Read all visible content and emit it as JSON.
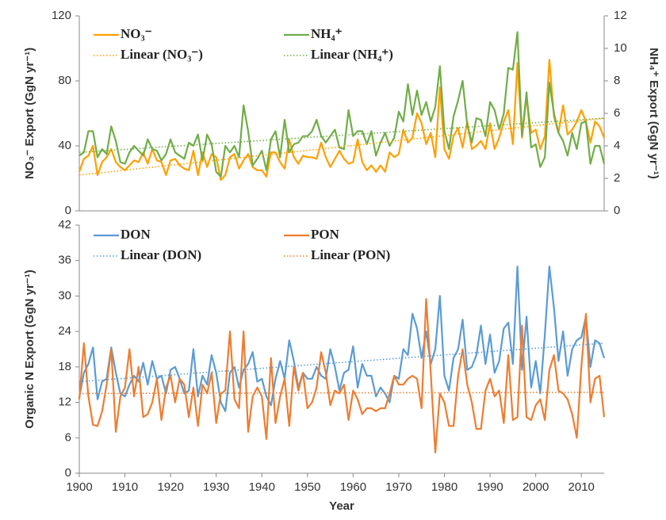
{
  "chart_data": [
    {
      "type": "line",
      "ylabel": "NO₃⁻ Export (GgN yr⁻¹)",
      "y2label": "NH₄⁺ Export (GgN yr⁻¹)",
      "x": [
        1900,
        1901,
        1902,
        1903,
        1904,
        1905,
        1906,
        1907,
        1908,
        1909,
        1910,
        1911,
        1912,
        1913,
        1914,
        1915,
        1916,
        1917,
        1918,
        1919,
        1920,
        1921,
        1922,
        1923,
        1924,
        1925,
        1926,
        1927,
        1928,
        1929,
        1930,
        1931,
        1932,
        1933,
        1934,
        1935,
        1936,
        1937,
        1938,
        1939,
        1940,
        1941,
        1942,
        1943,
        1944,
        1945,
        1946,
        1947,
        1948,
        1949,
        1950,
        1951,
        1952,
        1953,
        1954,
        1955,
        1956,
        1957,
        1958,
        1959,
        1960,
        1961,
        1962,
        1963,
        1964,
        1965,
        1966,
        1967,
        1968,
        1969,
        1970,
        1971,
        1972,
        1973,
        1974,
        1975,
        1976,
        1977,
        1978,
        1979,
        1980,
        1981,
        1982,
        1983,
        1984,
        1985,
        1986,
        1987,
        1988,
        1989,
        1990,
        1991,
        1992,
        1993,
        1994,
        1995,
        1996,
        1997,
        1998,
        1999,
        2000,
        2001,
        2002,
        2003,
        2004,
        2005,
        2006,
        2007,
        2008,
        2009,
        2010,
        2011,
        2012,
        2013,
        2014,
        2015
      ],
      "xlim": [
        1900,
        2015
      ],
      "ylim": [
        0,
        120
      ],
      "yticks": [
        0,
        40,
        80,
        120
      ],
      "y2lim": [
        0,
        12
      ],
      "y2ticks": [
        0,
        2,
        4,
        6,
        8,
        10,
        12
      ],
      "series": [
        {
          "name": "NO₃⁻",
          "color": "#ffa000",
          "values": [
            24,
            32,
            34,
            40,
            22,
            30,
            33,
            38,
            30,
            27,
            25,
            28,
            31,
            30,
            36,
            29,
            38,
            31,
            30,
            22,
            31,
            32,
            28,
            26,
            25,
            37,
            22,
            36,
            27,
            35,
            33,
            19,
            22,
            33,
            35,
            26,
            31,
            35,
            27,
            25,
            25,
            21,
            36,
            36,
            30,
            26,
            44,
            33,
            29,
            34,
            33,
            33,
            32,
            42,
            33,
            27,
            32,
            37,
            32,
            29,
            30,
            44,
            30,
            25,
            28,
            24,
            28,
            24,
            36,
            33,
            35,
            50,
            42,
            45,
            60,
            54,
            41,
            48,
            33,
            76,
            38,
            32,
            46,
            51,
            39,
            55,
            38,
            40,
            43,
            38,
            54,
            38,
            45,
            55,
            62,
            41,
            91,
            45,
            70,
            48,
            50,
            38,
            46,
            93,
            58,
            48,
            65,
            47,
            50,
            55,
            62,
            55,
            42,
            55,
            52,
            45
          ]
        },
        {
          "name": "NH₄⁺",
          "color": "#70ad47",
          "axis": "y2",
          "values": [
            3.4,
            3.6,
            4.9,
            4.9,
            3.3,
            3.8,
            3.5,
            5.2,
            4.3,
            3.0,
            2.9,
            3.6,
            4.0,
            3.7,
            3.4,
            4.4,
            3.8,
            3.7,
            3.1,
            3.5,
            4.4,
            3.6,
            3.4,
            3.2,
            4.2,
            4.0,
            4.7,
            3.1,
            4.7,
            4.1,
            2.4,
            2.1,
            4.0,
            3.6,
            4.0,
            3.3,
            6.5,
            4.9,
            2.8,
            3.2,
            3.7,
            2.5,
            4.4,
            4.9,
            3.3,
            5.6,
            3.6,
            4.1,
            4.2,
            4.6,
            4.6,
            4.9,
            5.6,
            4.6,
            4.2,
            4.6,
            5.0,
            3.9,
            3.8,
            6.2,
            4.6,
            4.9,
            4.9,
            4.1,
            4.9,
            3.4,
            4.2,
            4.8,
            4.0,
            4.5,
            6.1,
            5.5,
            7.8,
            5.9,
            7.4,
            5.9,
            6.7,
            5.5,
            6.4,
            8.9,
            4.9,
            3.8,
            5.8,
            6.8,
            8.0,
            5.3,
            4.2,
            5.7,
            5.6,
            4.6,
            6.7,
            6.2,
            5.0,
            6.0,
            8.8,
            8.7,
            11.0,
            4.6,
            7.3,
            3.9,
            4.1,
            2.7,
            3.3,
            7.9,
            6.0,
            4.8,
            4.3,
            3.4,
            4.8,
            3.8,
            5.4,
            5.5,
            2.9,
            4.0,
            4.0,
            2.9
          ]
        },
        {
          "name": "Linear (NO₃⁻)",
          "color": "#ffa000",
          "style": "dotted",
          "x": [
            1900,
            2015
          ],
          "values": [
            22,
            57
          ]
        },
        {
          "name": "Linear (NH₄⁺)",
          "color": "#70ad47",
          "style": "dotted",
          "axis": "y2",
          "x": [
            1900,
            2015
          ],
          "values": [
            3.6,
            5.7
          ]
        }
      ]
    },
    {
      "type": "line",
      "ylabel": "Organic N Export (GgN yr⁻¹)",
      "xlabel": "Year",
      "x": [
        1900,
        1901,
        1902,
        1903,
        1904,
        1905,
        1906,
        1907,
        1908,
        1909,
        1910,
        1911,
        1912,
        1913,
        1914,
        1915,
        1916,
        1917,
        1918,
        1919,
        1920,
        1921,
        1922,
        1923,
        1924,
        1925,
        1926,
        1927,
        1928,
        1929,
        1930,
        1931,
        1932,
        1933,
        1934,
        1935,
        1936,
        1937,
        1938,
        1939,
        1940,
        1941,
        1942,
        1943,
        1944,
        1945,
        1946,
        1947,
        1948,
        1949,
        1950,
        1951,
        1952,
        1953,
        1954,
        1955,
        1956,
        1957,
        1958,
        1959,
        1960,
        1961,
        1962,
        1963,
        1964,
        1965,
        1966,
        1967,
        1968,
        1969,
        1970,
        1971,
        1972,
        1973,
        1974,
        1975,
        1976,
        1977,
        1978,
        1979,
        1980,
        1981,
        1982,
        1983,
        1984,
        1985,
        1986,
        1987,
        1988,
        1989,
        1990,
        1991,
        1992,
        1993,
        1994,
        1995,
        1996,
        1997,
        1998,
        1999,
        2000,
        2001,
        2002,
        2003,
        2004,
        2005,
        2006,
        2007,
        2008,
        2009,
        2010,
        2011,
        2012,
        2013,
        2014,
        2015
      ],
      "xlim": [
        1900,
        2015
      ],
      "xticks": [
        1900,
        1910,
        1920,
        1930,
        1940,
        1950,
        1960,
        1970,
        1980,
        1990,
        2000,
        2010
      ],
      "ylim": [
        0,
        42
      ],
      "yticks": [
        0,
        6,
        12,
        18,
        24,
        30,
        36,
        42
      ],
      "series": [
        {
          "name": "DON",
          "color": "#5b9bd5",
          "values": [
            12.8,
            17,
            18.5,
            21.3,
            12.5,
            15.5,
            16,
            21.3,
            17,
            13.5,
            13,
            15,
            16.5,
            15.5,
            18.7,
            15,
            19,
            16,
            16.5,
            13.5,
            17.5,
            18,
            16,
            13.5,
            14,
            21,
            13,
            16.5,
            15,
            20,
            17,
            12,
            10.5,
            17,
            18,
            14.5,
            17.5,
            18.5,
            20.5,
            15.5,
            16,
            13,
            11.5,
            16,
            19,
            16,
            22.5,
            19,
            14.5,
            17,
            16,
            16,
            18,
            16.5,
            16,
            21,
            18,
            14,
            17,
            17.5,
            21.5,
            14.5,
            18.5,
            16.5,
            16.5,
            13,
            14.5,
            13.5,
            12,
            16.5,
            16,
            21,
            20,
            27,
            24.5,
            19.5,
            24,
            18.5,
            21,
            30,
            16.5,
            14,
            19.5,
            21,
            26,
            17.5,
            18,
            20,
            25,
            18.5,
            23.5,
            17,
            19,
            24.5,
            25.5,
            18.5,
            35,
            17.5,
            26.5,
            14.5,
            19,
            13.5,
            23.5,
            35,
            28,
            19,
            24,
            16.5,
            21,
            22.5,
            23,
            26.5,
            18,
            22.5,
            22,
            19.5
          ]
        },
        {
          "name": "PON",
          "color": "#ed7d31",
          "values": [
            12.5,
            22,
            13,
            8.2,
            8,
            10.5,
            15,
            21,
            7,
            13,
            14.5,
            21,
            13,
            18,
            9.5,
            10,
            12,
            16,
            9,
            14.5,
            16.5,
            12,
            16,
            15,
            9.5,
            14.5,
            8,
            15,
            13.5,
            17,
            8.5,
            13.5,
            14,
            24,
            12.5,
            11,
            24,
            7,
            13,
            14.5,
            13,
            5.8,
            19.5,
            8.5,
            13,
            16,
            8,
            18,
            14,
            17,
            11,
            12,
            14.5,
            20.5,
            17,
            11.5,
            14,
            13.5,
            15,
            9,
            14,
            12.5,
            10,
            11,
            11,
            10.5,
            11,
            11,
            13.5,
            16.5,
            15,
            15,
            16,
            16.5,
            16,
            11,
            29.5,
            17,
            3.5,
            13.5,
            12,
            8,
            8,
            16.5,
            21,
            15,
            12,
            7.5,
            7.5,
            14,
            16,
            13,
            14,
            8.5,
            20,
            9,
            9.5,
            25,
            9.5,
            9,
            11.5,
            12.5,
            9,
            17.5,
            20,
            14,
            13.5,
            12.5,
            10,
            6,
            18,
            27,
            12,
            16,
            16.5,
            9.5
          ]
        },
        {
          "name": "Linear (DON)",
          "color": "#5b9bd5",
          "style": "dotted",
          "x": [
            1900,
            2015
          ],
          "values": [
            15.5,
            22
          ]
        },
        {
          "name": "Linear (PON)",
          "color": "#ed7d31",
          "style": "dotted",
          "x": [
            1900,
            2015
          ],
          "values": [
            13.5,
            13.7
          ]
        }
      ]
    }
  ]
}
